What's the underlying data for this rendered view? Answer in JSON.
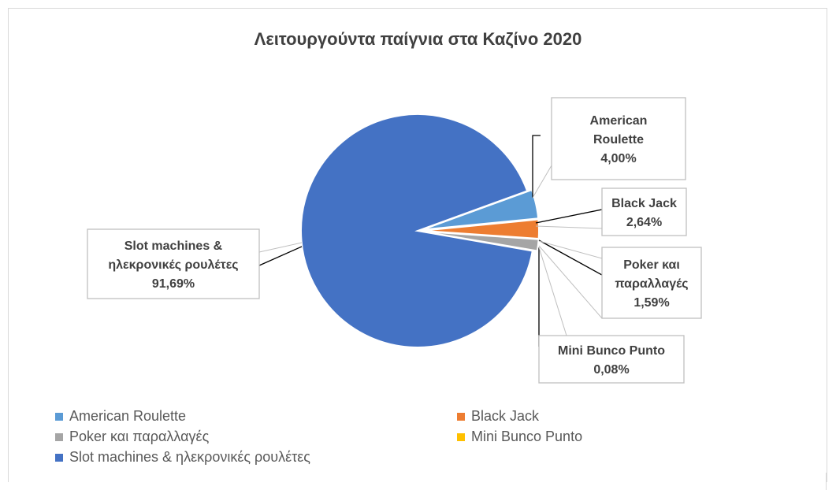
{
  "chart_data": {
    "type": "pie",
    "title": "Λειτουργούντα παίγνια στα Καζίνο 2020",
    "slices": [
      {
        "name": "American Roulette",
        "value": 4.0,
        "label_lines": [
          "American",
          "Roulette",
          "4,00%"
        ],
        "color": "#5b9bd5"
      },
      {
        "name": "Black Jack",
        "value": 2.64,
        "label_lines": [
          "Black Jack",
          "2,64%"
        ],
        "color": "#ed7d31"
      },
      {
        "name": "Poker και παραλλαγές",
        "value": 1.59,
        "label_lines": [
          "Poker και",
          "παραλλαγές",
          "1,59%"
        ],
        "color": "#a5a5a5"
      },
      {
        "name": "Mini Bunco Punto",
        "value": 0.08,
        "label_lines": [
          "Mini Bunco Punto",
          "0,08%"
        ],
        "color": "#ffc000"
      },
      {
        "name": "Slot machines & ηλεκρονικές ρουλέτες",
        "value": 91.69,
        "label_lines": [
          "Slot machines &",
          "ηλεκρονικές ρουλέτες",
          "91,69%"
        ],
        "color": "#4472c4"
      }
    ],
    "legend": {
      "placement": "bottom",
      "entries": [
        "American Roulette",
        "Black Jack",
        "Poker και παραλλαγές",
        "Mini Bunco Punto",
        "Slot machines & ηλεκρονικές ρουλέτες"
      ]
    }
  }
}
